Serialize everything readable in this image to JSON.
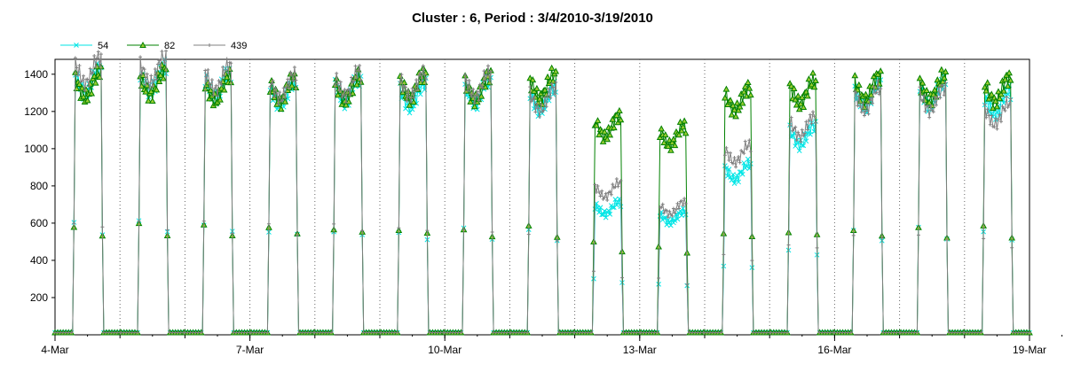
{
  "chart_data": {
    "type": "line",
    "title": "Cluster : 6, Period : 3/4/2010-3/19/2010",
    "xlabel": "",
    "ylabel": "",
    "x_range": [
      "2010-03-04",
      "2010-03-19"
    ],
    "ylim": [
      0,
      1480
    ],
    "y_ticks": [
      200,
      400,
      600,
      800,
      1000,
      1200,
      1400
    ],
    "x_ticks": [
      {
        "date": "2010-03-04",
        "label": "4-Mar"
      },
      {
        "date": "2010-03-07",
        "label": "7-Mar"
      },
      {
        "date": "2010-03-10",
        "label": "10-Mar"
      },
      {
        "date": "2010-03-13",
        "label": "13-Mar"
      },
      {
        "date": "2010-03-16",
        "label": "16-Mar"
      },
      {
        "date": "2010-03-19",
        "label": "19-Mar"
      }
    ],
    "grid": "dotted vertical lines at each day",
    "legend_position": "top-left",
    "series": [
      {
        "name": "54",
        "color": "#00e5e5",
        "marker": "x"
      },
      {
        "name": "82",
        "color": "#008000",
        "marker": "triangle"
      },
      {
        "name": "439",
        "color": "#808080",
        "marker": "plus"
      }
    ],
    "daily_profile": {
      "description": "Daily irradiance-like curve, zero at night, plateau during day",
      "dates": [
        "2010-03-04",
        "2010-03-05",
        "2010-03-06",
        "2010-03-07",
        "2010-03-08",
        "2010-03-09",
        "2010-03-10",
        "2010-03-11",
        "2010-03-12",
        "2010-03-13",
        "2010-03-14",
        "2010-03-15",
        "2010-03-16",
        "2010-03-17",
        "2010-03-18"
      ],
      "plateau_82": [
        1380,
        1390,
        1360,
        1350,
        1360,
        1370,
        1360,
        1370,
        1150,
        1100,
        1300,
        1340,
        1360,
        1360,
        1350
      ],
      "plateau_54": [
        1400,
        1410,
        1380,
        1330,
        1350,
        1320,
        1340,
        1300,
        700,
        650,
        900,
        1100,
        1320,
        1330,
        1280
      ],
      "plateau_439": [
        1460,
        1460,
        1420,
        1370,
        1390,
        1380,
        1380,
        1300,
        800,
        700,
        1000,
        1150,
        1300,
        1300,
        1220
      ]
    }
  }
}
